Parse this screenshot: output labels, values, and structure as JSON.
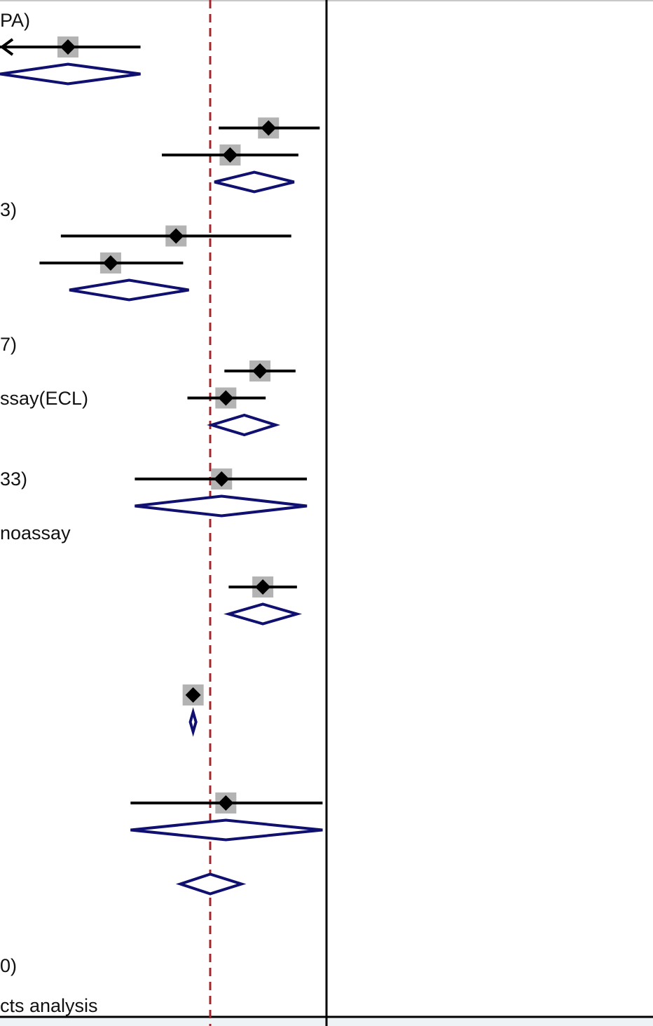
{
  "colors": {
    "ci_line": "#000000",
    "point": "#000000",
    "weight_box": "#b3b3b3",
    "diamond": "#101070",
    "null_line": "#a0282d",
    "frame": "#000000",
    "bottom_bar": "#eef4f6"
  },
  "labels": [
    {
      "id": "row1",
      "text": "PA)"
    },
    {
      "id": "row2",
      "text": "3)"
    },
    {
      "id": "row3",
      "text": "7)"
    },
    {
      "id": "row4",
      "text": "ssay(ECL)"
    },
    {
      "id": "row5",
      "text": "33)"
    },
    {
      "id": "row6",
      "text": "noassay"
    },
    {
      "id": "row7",
      "text": "0)"
    },
    {
      "id": "row8",
      "text": "cts analysis"
    }
  ],
  "chart_data": {
    "type": "forest",
    "xlim": [
      -1.5,
      0.9
    ],
    "null_value": 0,
    "studies": [
      {
        "row": 1,
        "estimate": -1.0,
        "ci": [
          -1.5,
          -0.49
        ],
        "ci_truncated_left": true
      },
      {
        "row": 4,
        "estimate": 0.41,
        "ci": [
          0.06,
          0.77
        ]
      },
      {
        "row": 5,
        "estimate": 0.14,
        "ci": [
          -0.34,
          0.62
        ]
      },
      {
        "row": 8,
        "estimate": -0.24,
        "ci": [
          -1.05,
          0.57
        ]
      },
      {
        "row": 9,
        "estimate": -0.7,
        "ci": [
          -1.2,
          -0.19
        ]
      },
      {
        "row": 13,
        "estimate": 0.35,
        "ci": [
          0.1,
          0.6
        ]
      },
      {
        "row": 14,
        "estimate": 0.11,
        "ci": [
          -0.16,
          0.39
        ]
      },
      {
        "row": 17,
        "estimate": 0.08,
        "ci": [
          -0.53,
          0.68
        ]
      },
      {
        "row": 21,
        "estimate": 0.37,
        "ci": [
          0.13,
          0.61
        ]
      },
      {
        "row": 25,
        "estimate": -0.12,
        "ci": [
          -0.12,
          -0.12
        ]
      },
      {
        "row": 29,
        "estimate": 0.11,
        "ci": [
          -0.56,
          0.79
        ]
      }
    ],
    "subtotals": [
      {
        "row": 2,
        "estimate": -1.0,
        "ci": [
          -1.5,
          -0.49
        ]
      },
      {
        "row": 6,
        "estimate": 0.31,
        "ci": [
          0.03,
          0.59
        ]
      },
      {
        "row": 10,
        "estimate": -0.57,
        "ci": [
          -0.99,
          -0.15
        ]
      },
      {
        "row": 15,
        "estimate": 0.24,
        "ci": [
          0.01,
          0.46
        ]
      },
      {
        "row": 18,
        "estimate": 0.08,
        "ci": [
          -0.53,
          0.68
        ]
      },
      {
        "row": 22,
        "estimate": 0.37,
        "ci": [
          0.13,
          0.61
        ]
      },
      {
        "row": 26,
        "estimate": -0.12,
        "ci": [
          -0.14,
          -0.1
        ]
      },
      {
        "row": 30,
        "estimate": 0.11,
        "ci": [
          -0.56,
          0.79
        ]
      },
      {
        "row": 32,
        "estimate": 0.0,
        "ci": [
          -0.21,
          0.22
        ]
      }
    ]
  }
}
